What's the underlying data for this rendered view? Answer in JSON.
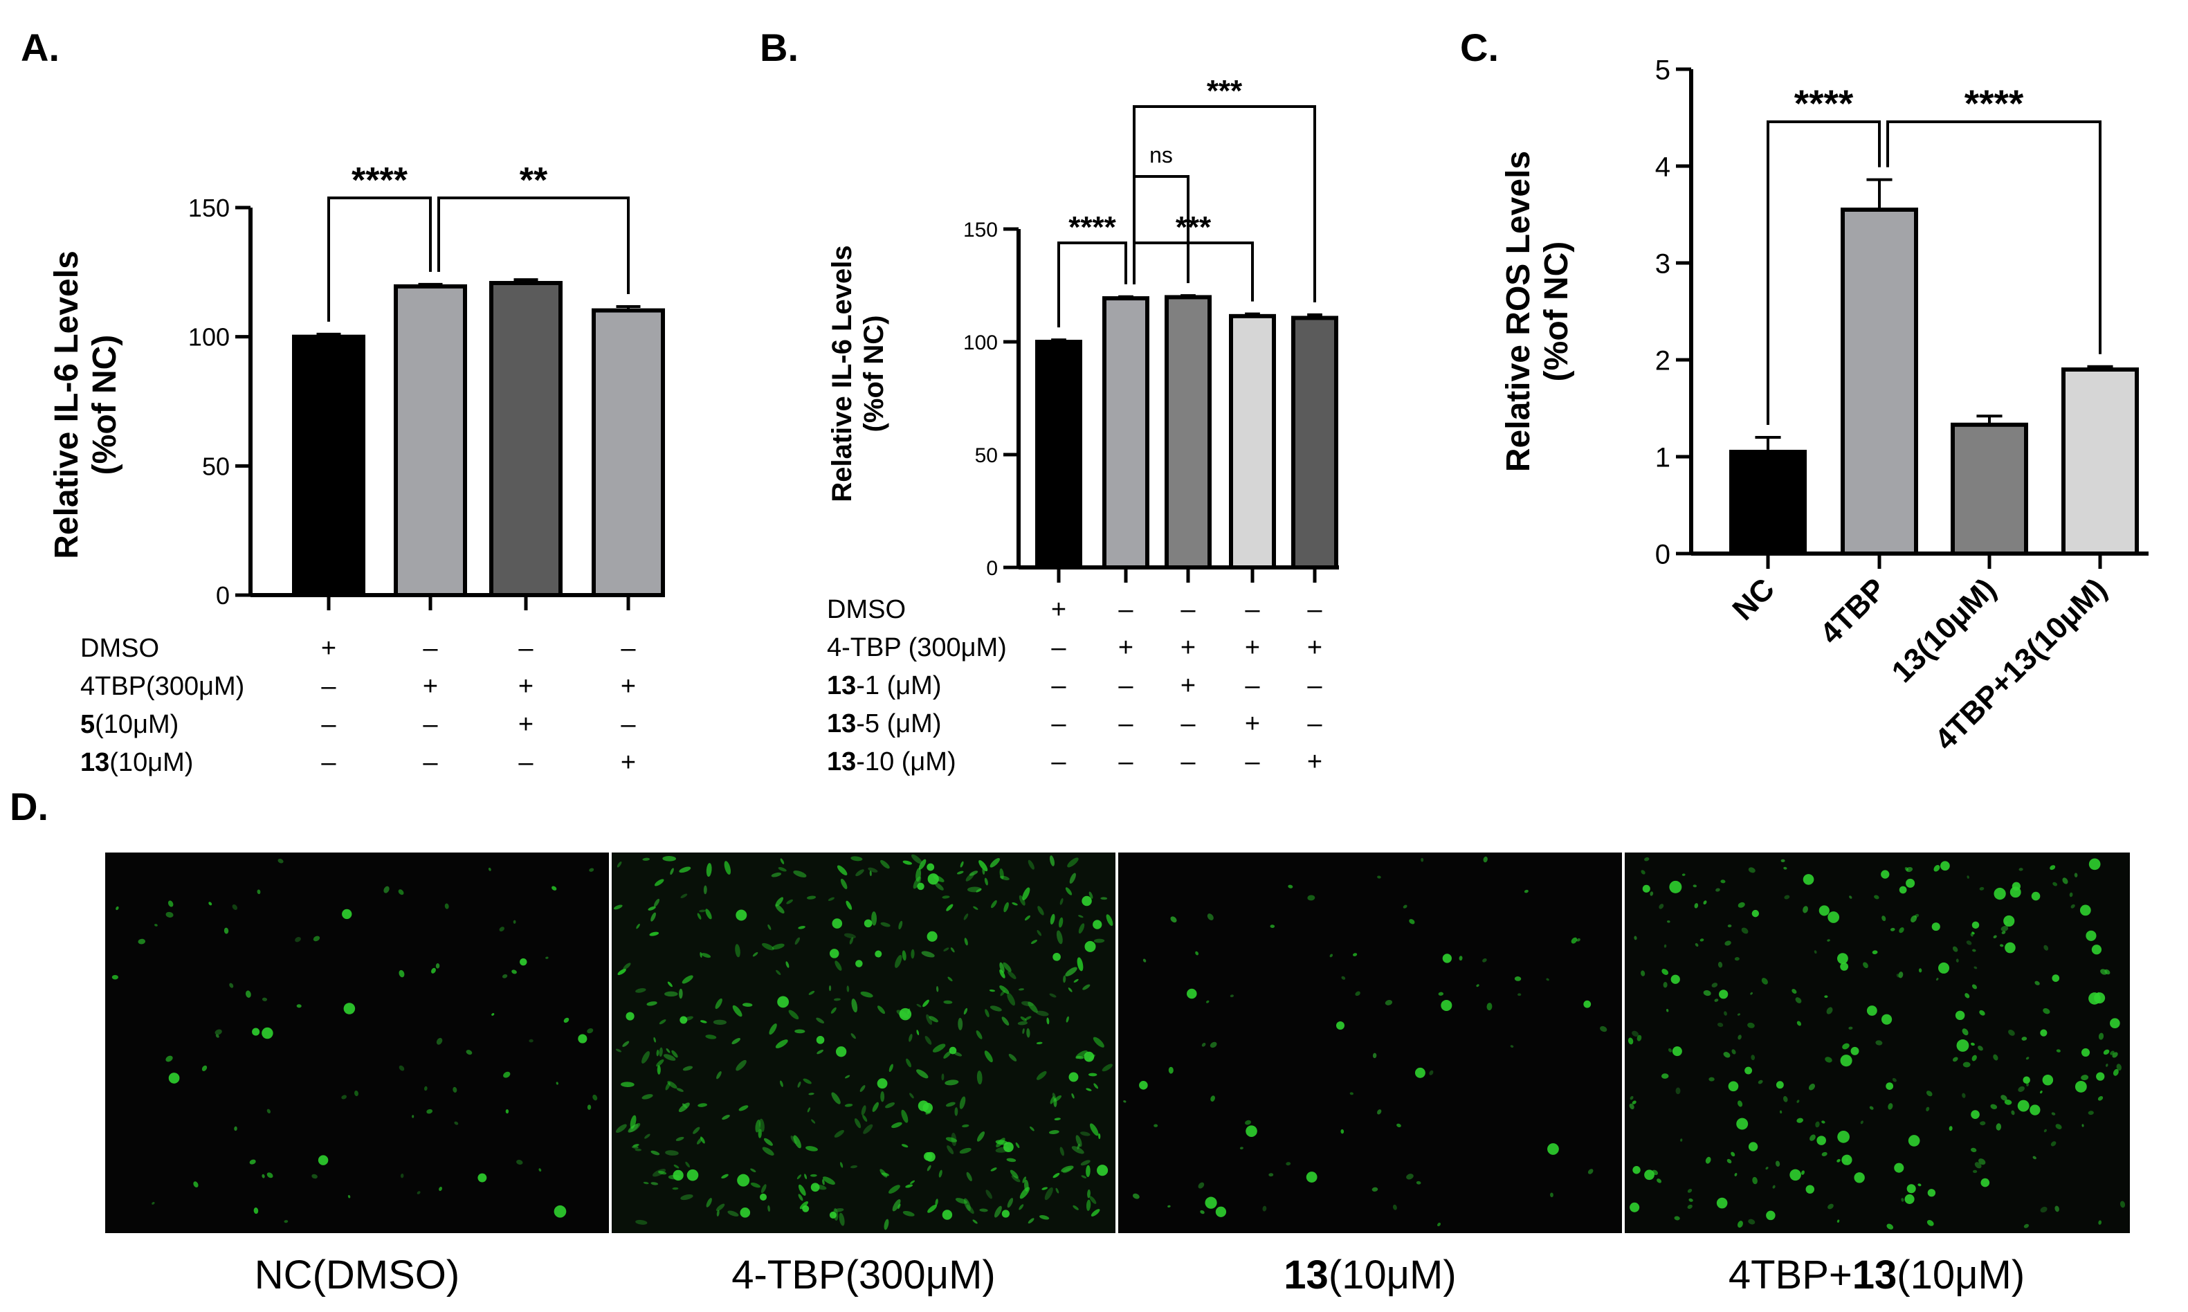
{
  "panels": {
    "a": "A.",
    "b": "B.",
    "c": "C.",
    "d": "D."
  },
  "chart_data": [
    {
      "id": "A",
      "type": "bar",
      "ylabel": "Relative IL-6 Levels\n(%of NC)",
      "ylim": [
        0,
        150
      ],
      "yticks": [
        0,
        50,
        100,
        150
      ],
      "values": [
        100,
        119.5,
        120.8,
        110.2
      ],
      "errors": [
        1.0,
        0.8,
        1.3,
        1.5
      ],
      "colors": [
        "#000000",
        "#a3a4a8",
        "#5b5b5b",
        "#a3a4a8"
      ],
      "table": {
        "rows": [
          {
            "label": "DMSO",
            "bold": "",
            "marks": [
              "+",
              "–",
              "–",
              "–"
            ]
          },
          {
            "label": "4TBP(300μM)",
            "bold": "",
            "marks": [
              "–",
              "+",
              "+",
              "+"
            ]
          },
          {
            "label": "(10μM)",
            "bold": "5",
            "marks": [
              "–",
              "–",
              "+",
              "–"
            ]
          },
          {
            "label": "(10μM)",
            "bold": "13",
            "marks": [
              "–",
              "–",
              "–",
              "+"
            ]
          }
        ]
      },
      "significance": [
        {
          "from": 0,
          "to": 1,
          "label": "****"
        },
        {
          "from": 1,
          "to": 3,
          "label": "**"
        }
      ]
    },
    {
      "id": "B",
      "type": "bar",
      "ylabel": "Relative IL-6 Levels\n(%of NC)",
      "ylim": [
        0,
        150
      ],
      "yticks": [
        0,
        50,
        100,
        150
      ],
      "values": [
        100,
        119.3,
        119.8,
        111.4,
        110.6
      ],
      "errors": [
        0.9,
        0.7,
        0.7,
        1.0,
        1.4
      ],
      "colors": [
        "#000000",
        "#a3a4a8",
        "#808080",
        "#d6d6d6",
        "#5b5b5b"
      ],
      "table": {
        "rows": [
          {
            "label": "DMSO",
            "bold": "",
            "marks": [
              "+",
              "–",
              "–",
              "–",
              "–"
            ]
          },
          {
            "label": "4-TBP (300μM)",
            "bold": "",
            "marks": [
              "–",
              "+",
              "+",
              "+",
              "+"
            ]
          },
          {
            "label": "-1  (μM)",
            "bold": "13",
            "marks": [
              "–",
              "–",
              "+",
              "–",
              "–"
            ]
          },
          {
            "label": "-5  (μM)",
            "bold": "13",
            "marks": [
              "–",
              "–",
              "–",
              "+",
              "–"
            ]
          },
          {
            "label": "-10 (μM)",
            "bold": "13",
            "marks": [
              "–",
              "–",
              "–",
              "–",
              "+"
            ]
          }
        ]
      },
      "significance": [
        {
          "from": 0,
          "to": 1,
          "label": "****"
        },
        {
          "from": 1,
          "to": 2,
          "label": "ns"
        },
        {
          "from": 1,
          "to": 3,
          "label": "***"
        },
        {
          "from": 1,
          "to": 4,
          "label": "***"
        }
      ]
    },
    {
      "id": "C",
      "type": "bar",
      "ylabel": "Relative ROS Levels\n(%of NC)",
      "ylim": [
        0,
        5
      ],
      "yticks": [
        0,
        1,
        2,
        3,
        4,
        5
      ],
      "categories": [
        "NC",
        "4TBP",
        "13(10μM)",
        "4TBP+13(10μM)"
      ],
      "values": [
        1.05,
        3.55,
        1.33,
        1.9
      ],
      "errors": [
        0.15,
        0.31,
        0.09,
        0.03
      ],
      "colors": [
        "#000000",
        "#a3a4a8",
        "#808080",
        "#d6d6d6"
      ],
      "significance": [
        {
          "from": 0,
          "to": 1,
          "label": "****"
        },
        {
          "from": 1,
          "to": 3,
          "label": "****"
        }
      ]
    }
  ],
  "images": {
    "captions": [
      {
        "bold": "",
        "text": "NC(DMSO)"
      },
      {
        "bold": "",
        "text": "4-TBP(300μM)"
      },
      {
        "bold": "13",
        "text": "(10μM)"
      },
      {
        "bold": "",
        "text": "4TBP+",
        "bold2": "13",
        "text2": "(10μM)"
      }
    ]
  }
}
